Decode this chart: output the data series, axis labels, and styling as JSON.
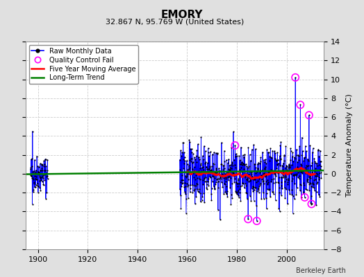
{
  "title": "EMORY",
  "subtitle": "32.867 N, 95.769 W (United States)",
  "ylabel": "Temperature Anomaly (°C)",
  "credit": "Berkeley Earth",
  "xlim": [
    1895,
    2015
  ],
  "ylim": [
    -8,
    14
  ],
  "yticks": [
    -8,
    -6,
    -4,
    -2,
    0,
    2,
    4,
    6,
    8,
    10,
    12,
    14
  ],
  "xticks": [
    1900,
    1920,
    1940,
    1960,
    1980,
    2000
  ],
  "background_color": "#e0e0e0",
  "plot_bg_color": "#ffffff",
  "grid_color": "#cccccc",
  "raw_line_color": "#0000ff",
  "raw_dot_color": "black",
  "qc_fail_color": "#ff00ff",
  "moving_avg_color": "red",
  "trend_color": "green",
  "seed": 42
}
